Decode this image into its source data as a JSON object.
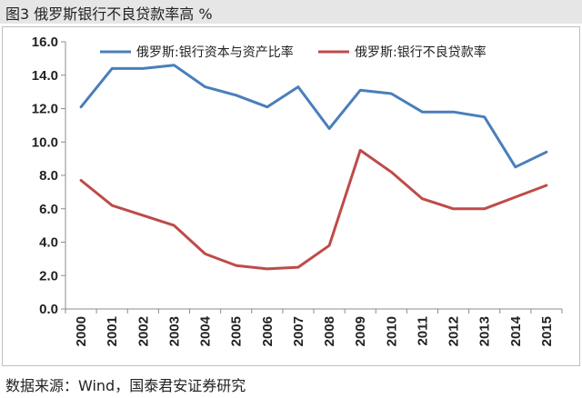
{
  "header": {
    "title": "图3  俄罗斯银行不良贷款率高 %"
  },
  "source": {
    "text": "数据来源：Wind，国泰君安证券研究"
  },
  "chart_data": {
    "type": "line",
    "categories": [
      "2000",
      "2001",
      "2002",
      "2003",
      "2004",
      "2005",
      "2006",
      "2007",
      "2008",
      "2009",
      "2010",
      "2011",
      "2012",
      "2013",
      "2014",
      "2015"
    ],
    "y_ticks": [
      "0.0",
      "2.0",
      "4.0",
      "6.0",
      "8.0",
      "10.0",
      "12.0",
      "14.0",
      "16.0"
    ],
    "ylim": [
      0,
      16
    ],
    "grid": false,
    "legend_position": "top",
    "series": [
      {
        "name": "俄罗斯:银行资本与资产比率",
        "color": "#4a7ebb",
        "values": [
          12.1,
          14.4,
          14.4,
          14.6,
          13.3,
          12.8,
          12.1,
          13.3,
          10.8,
          13.1,
          12.9,
          11.8,
          11.8,
          11.5,
          8.5,
          9.4
        ]
      },
      {
        "name": "俄罗斯:银行不良贷款率",
        "color": "#be4b48",
        "values": [
          7.7,
          6.2,
          5.6,
          5.0,
          3.3,
          2.6,
          2.4,
          2.5,
          3.8,
          9.5,
          8.2,
          6.6,
          6.0,
          6.0,
          6.7,
          7.4
        ]
      }
    ]
  }
}
